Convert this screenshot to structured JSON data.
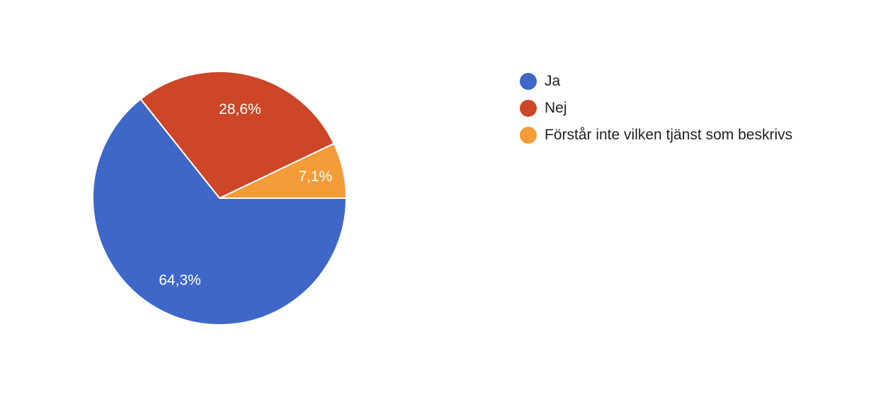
{
  "chart_data": {
    "type": "pie",
    "slices": [
      {
        "label": "Ja",
        "value": 64.3,
        "value_label": "64,3%",
        "color": "#3e67c7"
      },
      {
        "label": "Nej",
        "value": 28.6,
        "value_label": "28,6%",
        "color": "#cc4627"
      },
      {
        "label": "Förstår inte vilken tjänst som beskrivs",
        "value": 7.1,
        "value_label": "7,1%",
        "color": "#f39c38"
      }
    ],
    "legend_position": "right"
  }
}
